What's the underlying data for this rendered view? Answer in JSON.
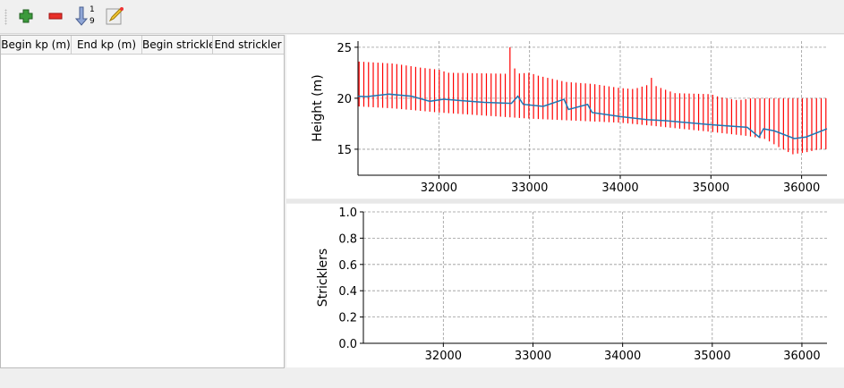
{
  "toolbar": {
    "items": [
      {
        "name": "add-icon",
        "label": "Add"
      },
      {
        "name": "remove-icon",
        "label": "Remove"
      },
      {
        "name": "sort-icon",
        "label": "Sort"
      },
      {
        "name": "edit-icon",
        "label": "Edit"
      }
    ],
    "sort_digits": [
      "1",
      "9"
    ]
  },
  "table": {
    "columns": [
      "Begin kp (m)",
      "End kp (m)",
      "Begin strickler",
      "End strickler"
    ],
    "rows": []
  },
  "chart_data": [
    {
      "type": "line",
      "ylabel": "Height (m)",
      "xlim": [
        31108,
        36280
      ],
      "ylim": [
        12.45,
        25.6
      ],
      "grid": true,
      "xticks": [
        32000,
        33000,
        34000,
        35000,
        36000
      ],
      "yticks": [
        15,
        20,
        25
      ],
      "colors": {
        "bed": "#1f77b4",
        "profiles": "#ff0000"
      },
      "bed": {
        "x": [
          31108,
          31200,
          31450,
          31700,
          31900,
          32050,
          32500,
          32800,
          32870,
          32930,
          33150,
          33380,
          33430,
          33640,
          33690,
          34000,
          34300,
          34500,
          35000,
          35400,
          35530,
          35580,
          35700,
          35920,
          36050,
          36280
        ],
        "y": [
          20.2,
          20.15,
          20.4,
          20.2,
          19.7,
          19.9,
          19.6,
          19.5,
          20.2,
          19.4,
          19.2,
          19.9,
          18.9,
          19.4,
          18.6,
          18.2,
          17.9,
          17.8,
          17.4,
          17.15,
          16.2,
          17.0,
          16.8,
          16.05,
          16.2,
          17.0
        ]
      },
      "profile_top": {
        "x": [
          31108,
          31500,
          31800,
          32000,
          32100,
          32750,
          32770,
          32820,
          32840,
          33000,
          33100,
          33400,
          33700,
          34000,
          34150,
          34300,
          34330,
          34360,
          34400,
          34450,
          34600,
          35000,
          35100,
          35300,
          35450,
          36280
        ],
        "y": [
          23.6,
          23.4,
          23.0,
          22.8,
          22.5,
          22.4,
          25.0,
          25.0,
          22.4,
          22.5,
          22.2,
          21.6,
          21.4,
          21.0,
          20.9,
          21.3,
          22.0,
          22.0,
          21.1,
          21.0,
          20.5,
          20.4,
          20.1,
          19.8,
          20.0,
          20.0
        ]
      },
      "profile_bottom": {
        "x": [
          31108,
          31500,
          32000,
          32500,
          33000,
          33500,
          34000,
          34350,
          35000,
          35400,
          35600,
          35750,
          35900,
          36050,
          36200,
          36280
        ],
        "y": [
          19.2,
          19.0,
          18.6,
          18.3,
          18.0,
          17.8,
          17.6,
          17.3,
          16.7,
          16.3,
          16.0,
          15.2,
          14.5,
          14.7,
          15.0,
          15.0
        ]
      }
    },
    {
      "type": "line",
      "ylabel": "Stricklers",
      "xlim": [
        31108,
        36280
      ],
      "ylim": [
        0,
        1
      ],
      "grid": true,
      "xticks": [
        32000,
        33000,
        34000,
        35000,
        36000
      ],
      "yticks": [
        0.0,
        0.2,
        0.4,
        0.6,
        0.8,
        1.0
      ],
      "series": []
    }
  ]
}
